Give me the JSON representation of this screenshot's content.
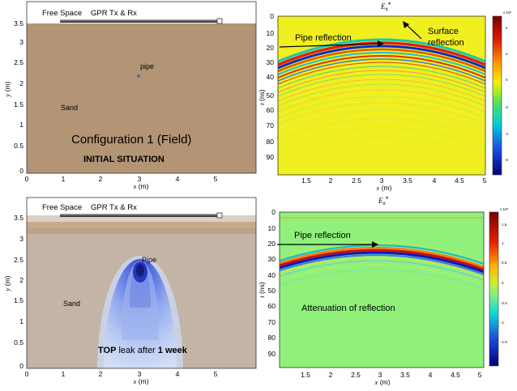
{
  "panel_a": {
    "free_space": "Free Space",
    "gpr": "GPR Tx & Rx",
    "pipe": "pipe",
    "sand": "Sand",
    "config": "Configuration 1 (Field)",
    "situation": "INITIAL SITUATION",
    "ylabel_var": "y",
    "ylabel_unit": "(m)",
    "xlabel_var": "x",
    "xlabel_unit": "(m)",
    "yticks": [
      "3.5",
      "3",
      "2.5",
      "2",
      "1.5",
      "1",
      "0.5",
      "0"
    ],
    "xticks": [
      "0",
      "1",
      "2",
      "3",
      "4",
      "5"
    ]
  },
  "panel_b": {
    "title_var": "E",
    "title_sub": "x",
    "title_star": "*",
    "pipe_reflection": "Pipe reflection",
    "surface_reflection_1": "Surface",
    "surface_reflection_2": "reflection",
    "ylabel_var": "t",
    "ylabel_unit": "(ns)",
    "xlabel_var": "x",
    "xlabel_unit": "(m)",
    "yticks": [
      "0",
      "10",
      "20",
      "30",
      "40",
      "50",
      "60",
      "70",
      "80",
      "90"
    ],
    "xticks": [
      "1.5",
      "2",
      "2.5",
      "3",
      "3.5",
      "4",
      "4.5",
      "5"
    ],
    "colorbar_exp": "x 10⁵",
    "colorbar_ticks": [
      "4",
      "2",
      "0",
      "-2",
      "-4",
      "-6"
    ]
  },
  "panel_c": {
    "free_space": "Free Space",
    "gpr": "GPR Tx & Rx",
    "pipe": "Pipe",
    "sand": "Sand",
    "leak_bold_1": "TOP",
    "leak_text": " leak after ",
    "leak_bold_2": "1 week",
    "ylabel_var": "y",
    "ylabel_unit": "(m)",
    "xlabel_var": "x",
    "xlabel_unit": "(m)",
    "yticks": [
      "3.5",
      "3",
      "2.5",
      "2",
      "1.5",
      "1",
      "0.5",
      "0"
    ],
    "xticks": [
      "0",
      "1",
      "2",
      "3",
      "4",
      "5"
    ]
  },
  "panel_d": {
    "title_var": "E",
    "title_sub": "x",
    "title_star": "*",
    "pipe_reflection": "Pipe reflection",
    "attenuation": "Attenuation of reflection",
    "ylabel_var": "t",
    "ylabel_unit": "(ns)",
    "xlabel_var": "x",
    "xlabel_unit": "(m)",
    "yticks": [
      "0",
      "10",
      "20",
      "30",
      "40",
      "50",
      "60",
      "70",
      "80",
      "90"
    ],
    "xticks": [
      "1.5",
      "2",
      "2.5",
      "3",
      "3.5",
      "4",
      "4.5",
      "5"
    ],
    "colorbar_exp": "x 10⁵",
    "colorbar_ticks": [
      "1.5",
      "1",
      "0.5",
      "0",
      "-0.5",
      "-1",
      "-1.5"
    ]
  },
  "colors": {
    "sand": "#b39474",
    "sand_dark": "#a9896a",
    "yellow_bg": "#f0ef1f",
    "green_bg": "#8ff17c",
    "leak": "#3b5bd8"
  }
}
